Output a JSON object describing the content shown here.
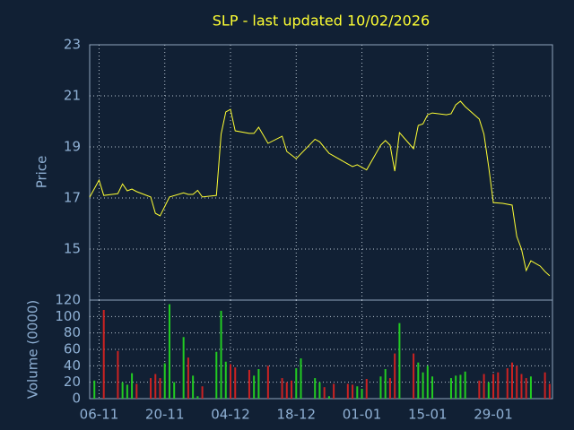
{
  "chart_data": [
    {
      "type": "line",
      "title": "SLP - last updated 10/02/2026",
      "y_label": "Price",
      "color": "#ffff33",
      "x": [
        -2,
        0,
        1,
        4,
        5,
        6,
        7,
        8,
        11,
        12,
        13,
        15,
        18,
        19,
        20,
        21,
        22,
        25,
        26,
        27,
        28,
        29,
        32,
        33,
        34,
        36,
        39,
        40,
        42,
        46,
        47,
        49,
        53,
        54,
        55,
        57,
        60,
        61,
        62,
        63,
        64,
        66,
        67,
        68,
        69,
        70,
        71,
        74,
        75,
        76,
        77,
        78,
        81,
        82,
        83,
        84,
        86,
        88,
        89,
        90,
        91,
        92,
        94,
        95,
        96
      ],
      "values": [
        17.03,
        17.7,
        17.1,
        17.17,
        17.55,
        17.28,
        17.35,
        17.25,
        17.04,
        16.4,
        16.3,
        17.04,
        17.2,
        17.14,
        17.14,
        17.3,
        17.04,
        17.1,
        19.5,
        20.37,
        20.47,
        19.63,
        19.53,
        19.53,
        19.77,
        19.14,
        19.42,
        18.82,
        18.54,
        19.3,
        19.2,
        18.75,
        18.33,
        18.23,
        18.3,
        18.1,
        19.07,
        19.25,
        19.07,
        18.05,
        19.56,
        19.14,
        18.93,
        19.84,
        19.9,
        20.26,
        20.33,
        20.26,
        20.3,
        20.65,
        20.79,
        20.58,
        20.09,
        19.5,
        18.23,
        16.82,
        16.79,
        16.72,
        15.49,
        15.0,
        14.16,
        14.54,
        14.33,
        14.12,
        13.95
      ],
      "xlim": [
        -2,
        96.6
      ],
      "ylim": [
        13,
        23
      ],
      "yticks": [
        15,
        17,
        19,
        21,
        23
      ],
      "grid": true
    },
    {
      "type": "bar",
      "y_label": "Volume (0000)",
      "x": [
        -1,
        1,
        4,
        5,
        6,
        7,
        8,
        11,
        12,
        13,
        14,
        15,
        16,
        18,
        19,
        20,
        21,
        22,
        25,
        26,
        27,
        28,
        29,
        32,
        33,
        34,
        36,
        39,
        40,
        41,
        42,
        43,
        46,
        47,
        48,
        49,
        50,
        53,
        54,
        55,
        56,
        57,
        60,
        61,
        62,
        63,
        64,
        67,
        68,
        69,
        70,
        71,
        75,
        76,
        77,
        78,
        81,
        82,
        83,
        84,
        85,
        87,
        88,
        89,
        90,
        91,
        92,
        95,
        96
      ],
      "values": [
        22,
        108,
        58,
        20,
        17,
        31,
        18,
        25,
        30,
        25,
        43,
        115,
        20,
        75,
        50,
        28,
        3,
        15,
        57,
        107,
        45,
        42,
        38,
        35,
        28,
        36,
        40,
        25,
        20,
        22,
        37,
        49,
        25,
        20,
        14,
        3,
        18,
        18,
        17,
        15,
        12,
        24,
        27,
        36,
        25,
        55,
        92,
        55,
        44,
        32,
        40,
        27,
        25,
        28,
        29,
        33,
        22,
        30,
        20,
        30,
        32,
        37,
        44,
        40,
        30,
        25,
        27,
        32,
        18
      ],
      "colors": [
        "#22cc22",
        "#cc2222",
        "#cc2222",
        "#22cc22",
        "#22cc22",
        "#22cc22",
        "#cc2222",
        "#cc2222",
        "#cc2222",
        "#cc2222",
        "#22cc22",
        "#22cc22",
        "#22cc22",
        "#22cc22",
        "#cc2222",
        "#22cc22",
        "#22cc22",
        "#cc2222",
        "#22cc22",
        "#22cc22",
        "#22cc22",
        "#cc2222",
        "#cc2222",
        "#cc2222",
        "#22cc22",
        "#22cc22",
        "#cc2222",
        "#cc2222",
        "#cc2222",
        "#cc2222",
        "#22cc22",
        "#22cc22",
        "#22cc22",
        "#22cc22",
        "#cc2222",
        "#22cc22",
        "#cc2222",
        "#cc2222",
        "#cc2222",
        "#22cc22",
        "#22cc22",
        "#cc2222",
        "#22cc22",
        "#22cc22",
        "#cc2222",
        "#cc2222",
        "#22cc22",
        "#cc2222",
        "#22cc22",
        "#22cc22",
        "#22cc22",
        "#22cc22",
        "#22cc22",
        "#22cc22",
        "#22cc22",
        "#22cc22",
        "#cc2222",
        "#cc2222",
        "#22cc22",
        "#cc2222",
        "#cc2222",
        "#cc2222",
        "#cc2222",
        "#cc2222",
        "#cc2222",
        "#cc2222",
        "#22cc22",
        "#cc2222",
        "#cc2222"
      ],
      "xlim": [
        -2,
        96.6
      ],
      "ylim": [
        0,
        120
      ],
      "yticks": [
        0,
        20,
        40,
        60,
        80,
        100,
        120
      ],
      "xticks": [
        {
          "value": 0,
          "label": "06-11"
        },
        {
          "value": 14,
          "label": "20-11"
        },
        {
          "value": 28,
          "label": "04-12"
        },
        {
          "value": 42,
          "label": "18-12"
        },
        {
          "value": 56,
          "label": "01-01"
        },
        {
          "value": 70,
          "label": "15-01"
        },
        {
          "value": 84,
          "label": "29-01"
        }
      ],
      "grid": true
    }
  ]
}
